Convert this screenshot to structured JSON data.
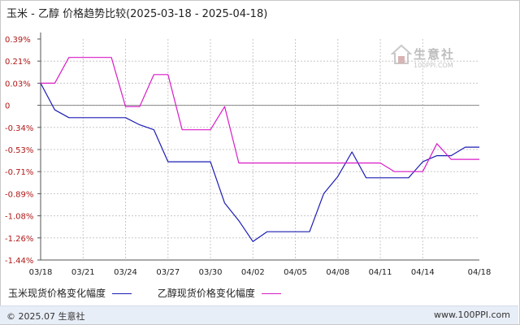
{
  "header": {
    "title": "玉米 - 乙醇 价格趋势比较(2025-03-18 - 2025-04-18)"
  },
  "watermark": {
    "brand": "生意社",
    "url": "100PPI.COM"
  },
  "footer": {
    "copyright": "© 2025.07 生意社",
    "website": "www.100PPI.com"
  },
  "colors": {
    "corn": "#1c1cb4",
    "ethanol": "#d91cc8",
    "tick_label": "#b01818",
    "grid": "#c8c8c8"
  },
  "chart_data": {
    "type": "line",
    "title": "玉米 - 乙醇 价格趋势比较(2025-03-18 - 2025-04-18)",
    "xlabel": "",
    "ylabel": "",
    "x_range": [
      "03/18",
      "04/18"
    ],
    "x_ticks": [
      "03/18",
      "03/21",
      "03/24",
      "03/27",
      "03/30",
      "04/02",
      "04/05",
      "04/08",
      "04/11",
      "04/14",
      "04/18"
    ],
    "y_ticks": [
      "0.39%",
      "0.21%",
      "0.03%",
      "0",
      "-0.34%",
      "-0.53%",
      "-0.71%",
      "-0.89%",
      "-1.08%",
      "-1.26%",
      "-1.44%"
    ],
    "y_tick_values": [
      0.39,
      0.21,
      0.03,
      0.0,
      -0.34,
      -0.53,
      -0.71,
      -0.89,
      -1.08,
      -1.26,
      -1.44
    ],
    "ylim": [
      -1.44,
      0.39
    ],
    "grid": "horizontal dashed",
    "legend": "bottom-left",
    "series": [
      {
        "name": "玉米现货价格变化幅度",
        "color": "#1c1cb4",
        "points": [
          [
            "03/18",
            0.03
          ],
          [
            "03/19",
            -0.07
          ],
          [
            "03/20",
            -0.19
          ],
          [
            "03/24",
            -0.19
          ],
          [
            "03/25",
            -0.3
          ],
          [
            "03/26",
            -0.36
          ],
          [
            "03/27",
            -0.63
          ],
          [
            "03/30",
            -0.63
          ],
          [
            "03/31",
            -0.97
          ],
          [
            "04/01",
            -1.12
          ],
          [
            "04/02",
            -1.29
          ],
          [
            "04/03",
            -1.21
          ],
          [
            "04/06",
            -1.21
          ],
          [
            "04/07",
            -0.89
          ],
          [
            "04/08",
            -0.75
          ],
          [
            "04/09",
            -0.55
          ],
          [
            "04/10",
            -0.76
          ],
          [
            "04/13",
            -0.76
          ],
          [
            "04/14",
            -0.63
          ],
          [
            "04/15",
            -0.58
          ],
          [
            "04/16",
            -0.58
          ],
          [
            "04/17",
            -0.51
          ],
          [
            "04/18",
            -0.51
          ]
        ]
      },
      {
        "name": "乙醇现货价格变化幅度",
        "color": "#d91cc8",
        "points": [
          [
            "03/18",
            0.03
          ],
          [
            "03/19",
            0.03
          ],
          [
            "03/20",
            0.24
          ],
          [
            "03/23",
            0.24
          ],
          [
            "03/24",
            -0.02
          ],
          [
            "03/25",
            -0.02
          ],
          [
            "03/26",
            0.1
          ],
          [
            "03/27",
            0.1
          ],
          [
            "03/28",
            -0.36
          ],
          [
            "03/30",
            -0.36
          ],
          [
            "03/31",
            -0.02
          ],
          [
            "04/01",
            -0.64
          ],
          [
            "04/11",
            -0.64
          ],
          [
            "04/12",
            -0.71
          ],
          [
            "04/14",
            -0.71
          ],
          [
            "04/15",
            -0.48
          ],
          [
            "04/16",
            -0.61
          ],
          [
            "04/18",
            -0.61
          ]
        ]
      }
    ]
  }
}
